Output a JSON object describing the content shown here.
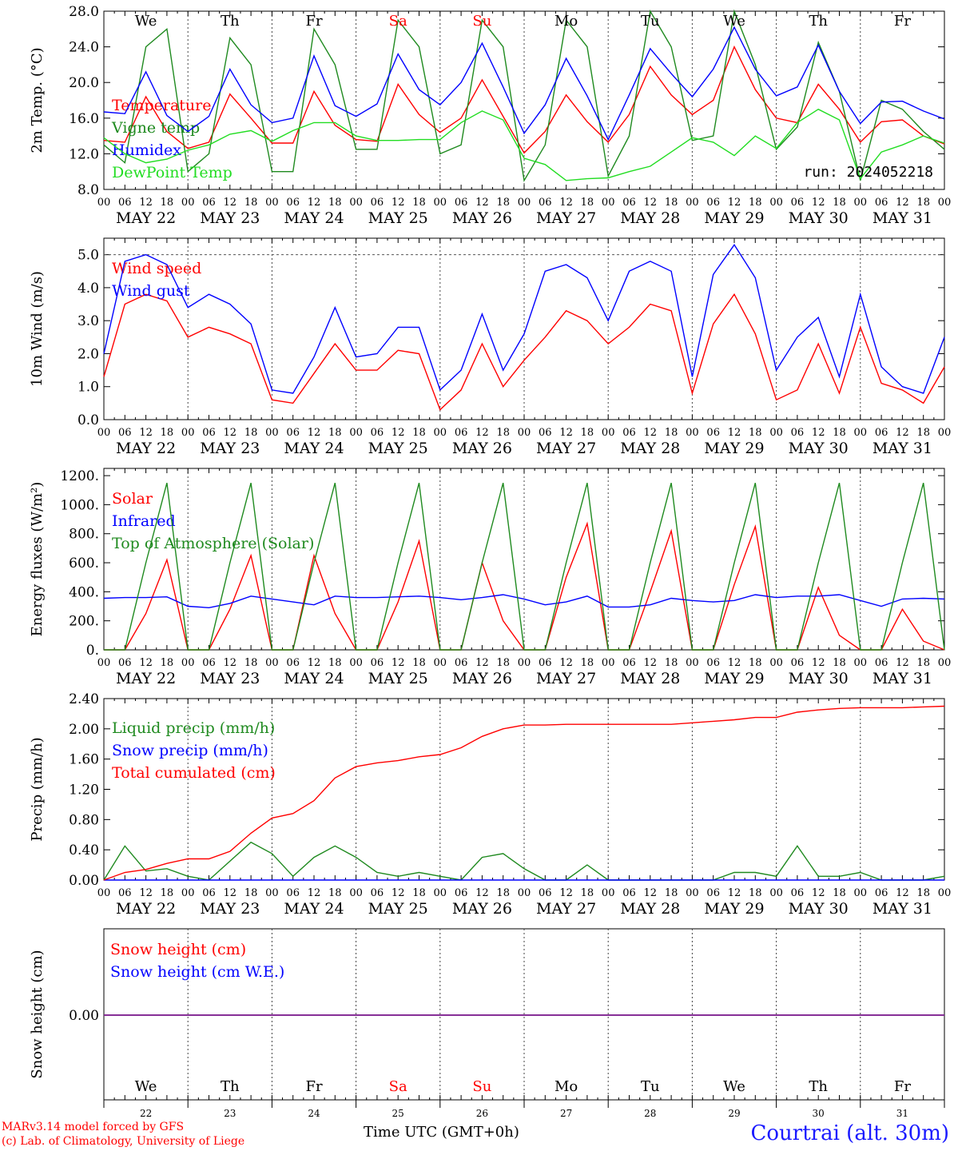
{
  "chart_data": [
    {
      "type": "line",
      "ylabel": "2m Temp. (°C)",
      "ylim": [
        8.0,
        28.0
      ],
      "yticks": [
        "8.0",
        "12.0",
        "16.0",
        "20.0",
        "24.0",
        "28.0"
      ],
      "annotation": "run: 2024052218",
      "x_hours": [
        0,
        6,
        12,
        18,
        24,
        30,
        36,
        42,
        48,
        54,
        60,
        66,
        72,
        78,
        84,
        90,
        96,
        102,
        108,
        114,
        120,
        126,
        132,
        138,
        144,
        150,
        156,
        162,
        168,
        174,
        180,
        186,
        192,
        198,
        204,
        210,
        216,
        222,
        228,
        234,
        240
      ],
      "series": [
        {
          "name": "Temperature",
          "color": "#ff0000",
          "values": [
            13.5,
            13.3,
            18.4,
            14.5,
            12.6,
            13.3,
            18.7,
            16.0,
            13.2,
            13.2,
            19.0,
            15.2,
            13.6,
            13.4,
            19.8,
            16.4,
            14.4,
            16.0,
            20.3,
            16.2,
            12.1,
            14.5,
            18.6,
            15.6,
            13.3,
            16.4,
            21.8,
            18.6,
            16.4,
            18.0,
            24.0,
            19.2,
            16.0,
            15.5,
            19.8,
            17.0,
            13.3,
            15.6,
            15.8,
            14.0,
            13.1
          ]
        },
        {
          "name": "Vigne temp",
          "color": "#1f8a1f",
          "values": [
            13.0,
            11.0,
            24.0,
            26.0,
            10.0,
            12.0,
            25.0,
            22.0,
            10.0,
            10.0,
            26.0,
            22.0,
            12.5,
            12.5,
            27.0,
            24.0,
            12.0,
            13.0,
            27.0,
            24.0,
            9.0,
            13.0,
            27.0,
            24.0,
            9.5,
            14.0,
            28.0,
            24.0,
            13.5,
            14.0,
            28.0,
            22.0,
            12.5,
            15.0,
            24.5,
            19.0,
            9.0,
            18.0,
            17.0,
            14.5,
            12.5
          ]
        },
        {
          "name": "Humidex",
          "color": "#0000ff",
          "values": [
            16.7,
            16.5,
            21.2,
            16.3,
            14.5,
            16.2,
            21.5,
            17.5,
            15.5,
            16.0,
            23.0,
            17.4,
            16.2,
            17.6,
            23.2,
            19.2,
            17.5,
            20.0,
            24.4,
            19.5,
            14.3,
            17.5,
            22.7,
            18.5,
            13.6,
            18.6,
            23.8,
            21.0,
            18.4,
            21.5,
            26.2,
            21.5,
            18.5,
            19.5,
            24.2,
            19.0,
            15.4,
            17.8,
            17.9,
            16.8,
            15.9
          ]
        },
        {
          "name": "DewPoint Temp",
          "color": "#22dd22",
          "values": [
            13.8,
            12.0,
            11.0,
            11.4,
            12.4,
            13.0,
            14.2,
            14.6,
            13.4,
            14.6,
            15.5,
            15.5,
            14.0,
            13.5,
            13.5,
            13.6,
            13.6,
            15.5,
            16.8,
            15.8,
            11.5,
            10.8,
            9.0,
            9.2,
            9.3,
            10.0,
            10.6,
            12.2,
            13.8,
            13.3,
            11.8,
            14.0,
            12.6,
            15.5,
            17.0,
            15.8,
            9.2,
            12.2,
            13.0,
            14.0,
            13.2
          ]
        }
      ]
    },
    {
      "type": "line",
      "ylabel": "10m Wind (m/s)",
      "ylim": [
        0.0,
        5.5
      ],
      "yticks": [
        "0.0",
        "1.0",
        "2.0",
        "3.0",
        "4.0",
        "5.0"
      ],
      "x_hours": [
        0,
        6,
        12,
        18,
        24,
        30,
        36,
        42,
        48,
        54,
        60,
        66,
        72,
        78,
        84,
        90,
        96,
        102,
        108,
        114,
        120,
        126,
        132,
        138,
        144,
        150,
        156,
        162,
        168,
        174,
        180,
        186,
        192,
        198,
        204,
        210,
        216,
        222,
        228,
        234,
        240
      ],
      "series": [
        {
          "name": "Wind speed",
          "color": "#ff0000",
          "values": [
            1.3,
            3.5,
            3.8,
            3.6,
            2.5,
            2.8,
            2.6,
            2.3,
            0.6,
            0.5,
            1.4,
            2.3,
            1.5,
            1.5,
            2.1,
            2.0,
            0.3,
            0.9,
            2.3,
            1.0,
            1.8,
            2.5,
            3.3,
            3.0,
            2.3,
            2.8,
            3.5,
            3.3,
            0.8,
            2.9,
            3.8,
            2.6,
            0.6,
            0.9,
            2.3,
            0.8,
            2.8,
            1.1,
            0.9,
            0.5,
            1.6
          ]
        },
        {
          "name": "Wind gust",
          "color": "#0000ff",
          "values": [
            2.0,
            4.8,
            5.0,
            4.7,
            3.4,
            3.8,
            3.5,
            2.9,
            0.9,
            0.8,
            1.9,
            3.4,
            1.9,
            2.0,
            2.8,
            2.8,
            0.9,
            1.5,
            3.2,
            1.5,
            2.6,
            4.5,
            4.7,
            4.3,
            3.0,
            4.5,
            4.8,
            4.5,
            1.3,
            4.4,
            5.3,
            4.3,
            1.5,
            2.5,
            3.1,
            1.3,
            3.8,
            1.6,
            1.0,
            0.8,
            2.5
          ]
        }
      ]
    },
    {
      "type": "line",
      "ylabel": "Energy fluxes (W/m²)",
      "ylim": [
        0,
        1200
      ],
      "yticks": [
        "0.",
        "200.",
        "400.",
        "600.",
        "800.",
        "1000.",
        "1200."
      ],
      "x_hours": [
        0,
        6,
        12,
        18,
        24,
        30,
        36,
        42,
        48,
        54,
        60,
        66,
        72,
        78,
        84,
        90,
        96,
        102,
        108,
        114,
        120,
        126,
        132,
        138,
        144,
        150,
        156,
        162,
        168,
        174,
        180,
        186,
        192,
        198,
        204,
        210,
        216,
        222,
        228,
        234,
        240
      ],
      "series": [
        {
          "name": "Solar",
          "color": "#ff0000",
          "values": [
            0,
            0,
            250,
            620,
            0,
            0,
            280,
            650,
            0,
            0,
            650,
            250,
            0,
            0,
            330,
            750,
            0,
            0,
            600,
            200,
            0,
            0,
            500,
            870,
            0,
            0,
            400,
            820,
            0,
            0,
            450,
            850,
            0,
            0,
            430,
            100,
            0,
            0,
            280,
            60,
            0
          ]
        },
        {
          "name": "Infrared",
          "color": "#0000ff",
          "values": [
            355,
            360,
            360,
            365,
            300,
            290,
            320,
            370,
            350,
            330,
            310,
            370,
            360,
            360,
            365,
            370,
            360,
            345,
            360,
            380,
            350,
            310,
            330,
            370,
            295,
            295,
            310,
            355,
            340,
            330,
            340,
            380,
            360,
            370,
            370,
            380,
            340,
            300,
            350,
            355,
            350
          ]
        },
        {
          "name": "Top of Atmosphere (Solar)",
          "color": "#1f8a1f",
          "values": [
            0,
            0,
            600,
            1150,
            0,
            0,
            600,
            1150,
            0,
            0,
            600,
            1150,
            0,
            0,
            600,
            1150,
            0,
            0,
            600,
            1150,
            0,
            0,
            600,
            1150,
            0,
            0,
            600,
            1150,
            0,
            0,
            600,
            1150,
            0,
            0,
            600,
            1150,
            0,
            0,
            600,
            1150,
            0
          ]
        }
      ]
    },
    {
      "type": "line",
      "ylabel": "Precip (mm/h)",
      "ylim": [
        0.0,
        2.4
      ],
      "yticks": [
        "0.00",
        "0.40",
        "0.80",
        "1.20",
        "1.60",
        "2.00",
        "2.40"
      ],
      "x_hours": [
        0,
        6,
        12,
        18,
        24,
        30,
        36,
        42,
        48,
        54,
        60,
        66,
        72,
        78,
        84,
        90,
        96,
        102,
        108,
        114,
        120,
        126,
        132,
        138,
        144,
        150,
        156,
        162,
        168,
        174,
        180,
        186,
        192,
        198,
        204,
        210,
        216,
        222,
        228,
        234,
        240
      ],
      "series": [
        {
          "name": "Liquid precip (mm/h)",
          "color": "#1f8a1f",
          "values": [
            0.0,
            0.45,
            0.12,
            0.15,
            0.05,
            0.0,
            0.25,
            0.5,
            0.35,
            0.05,
            0.3,
            0.45,
            0.3,
            0.1,
            0.05,
            0.1,
            0.05,
            0.0,
            0.3,
            0.35,
            0.15,
            0.0,
            0.0,
            0.2,
            0.0,
            0.0,
            0.0,
            0.0,
            0.0,
            0.0,
            0.1,
            0.1,
            0.05,
            0.45,
            0.05,
            0.05,
            0.1,
            0.0,
            0.0,
            0.0,
            0.05
          ]
        },
        {
          "name": "Snow precip (mm/h)",
          "color": "#0000ff",
          "values": [
            0,
            0,
            0,
            0,
            0,
            0,
            0,
            0,
            0,
            0,
            0,
            0,
            0,
            0,
            0,
            0,
            0,
            0,
            0,
            0,
            0,
            0,
            0,
            0,
            0,
            0,
            0,
            0,
            0,
            0,
            0,
            0,
            0,
            0,
            0,
            0,
            0,
            0,
            0,
            0,
            0
          ]
        },
        {
          "name": "Total cumulated (cm)",
          "color": "#ff0000",
          "values": [
            0.0,
            0.1,
            0.14,
            0.22,
            0.28,
            0.28,
            0.38,
            0.62,
            0.82,
            0.88,
            1.05,
            1.35,
            1.5,
            1.55,
            1.58,
            1.63,
            1.66,
            1.75,
            1.9,
            2.0,
            2.05,
            2.05,
            2.06,
            2.06,
            2.06,
            2.06,
            2.06,
            2.06,
            2.08,
            2.1,
            2.12,
            2.15,
            2.15,
            2.22,
            2.25,
            2.27,
            2.28,
            2.28,
            2.28,
            2.29,
            2.3
          ]
        }
      ]
    },
    {
      "type": "line",
      "ylabel": "Snow height (cm)",
      "yticks": [
        "0.00"
      ],
      "x_hours": [
        0,
        240
      ],
      "series": [
        {
          "name": "Snow height (cm)",
          "color": "#ff0000",
          "values": [
            0,
            0
          ]
        },
        {
          "name": "Snow height (cm W.E.)",
          "color": "#0000ff",
          "values": [
            0,
            0
          ]
        }
      ]
    }
  ],
  "axis": {
    "dates": [
      "MAY 22",
      "MAY 23",
      "MAY 24",
      "MAY 25",
      "MAY 26",
      "MAY 27",
      "MAY 28",
      "MAY 29",
      "MAY 30",
      "MAY 31"
    ],
    "hour_ticks": [
      "00",
      "06",
      "12",
      "18"
    ],
    "end_tick": "00",
    "weekdays": [
      "We",
      "Th",
      "Fr",
      "Sa",
      "Su",
      "Mo",
      "Tu",
      "We",
      "Th",
      "Fr"
    ],
    "weekend_color": "#ff0000",
    "weekend_flags": [
      false,
      false,
      false,
      true,
      true,
      false,
      false,
      false,
      false,
      false
    ],
    "day_numbers": [
      "22",
      "23",
      "24",
      "25",
      "26",
      "27",
      "28",
      "29",
      "30",
      "31"
    ]
  },
  "footer": {
    "xlabel": "Time UTC (GMT+0h)",
    "credit1": "MARv3.14 model forced by GFS",
    "credit2": "(c) Lab. of Climatology, University of Liege",
    "site": "Courtrai (alt. 30m)"
  }
}
